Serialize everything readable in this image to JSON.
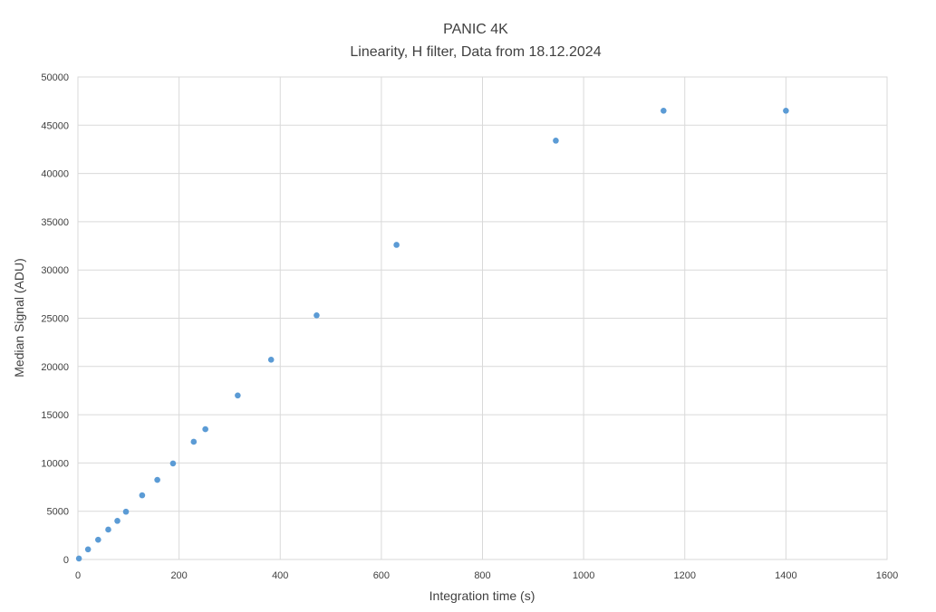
{
  "chart_data": {
    "type": "scatter",
    "title": "PANIC 4K",
    "subtitle": "Linearity, H filter, Data from 18.12.2024",
    "xlabel": "Integration time (s)",
    "ylabel": "Median Signal (ADU)",
    "xlim": [
      0,
      1600
    ],
    "ylim": [
      0,
      50000
    ],
    "xticks": [
      0,
      200,
      400,
      600,
      800,
      1000,
      1200,
      1400,
      1600
    ],
    "yticks": [
      0,
      5000,
      10000,
      15000,
      20000,
      25000,
      30000,
      35000,
      40000,
      45000,
      50000
    ],
    "grid": true,
    "legend": "none",
    "marker_color": "#5b9bd5",
    "series": [
      {
        "points": [
          {
            "x": 2,
            "y": 100
          },
          {
            "x": 20,
            "y": 1050
          },
          {
            "x": 40,
            "y": 2050
          },
          {
            "x": 60,
            "y": 3100
          },
          {
            "x": 78,
            "y": 4000
          },
          {
            "x": 95,
            "y": 4950
          },
          {
            "x": 127,
            "y": 6650
          },
          {
            "x": 157,
            "y": 8250
          },
          {
            "x": 188,
            "y": 9950
          },
          {
            "x": 229,
            "y": 12200
          },
          {
            "x": 252,
            "y": 13500
          },
          {
            "x": 316,
            "y": 17000
          },
          {
            "x": 382,
            "y": 20700
          },
          {
            "x": 472,
            "y": 25300
          },
          {
            "x": 630,
            "y": 32600
          },
          {
            "x": 945,
            "y": 43400
          },
          {
            "x": 1158,
            "y": 46500
          },
          {
            "x": 1400,
            "y": 46500
          }
        ]
      }
    ]
  }
}
